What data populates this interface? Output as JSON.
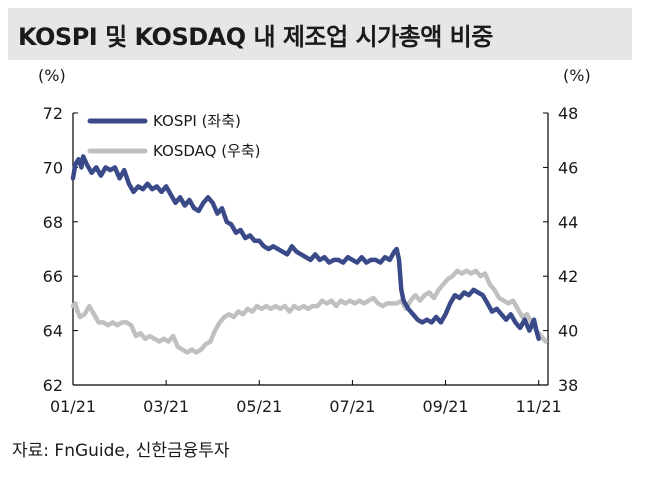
{
  "title": "KOSPI 및 KOSDAQ 내 제조업 시가총액 비중",
  "source": "자료: FnGuide, 신한금융투자",
  "colors": {
    "kospi": "#3a4a88",
    "kosdaq": "#c0c0c0",
    "title_bg": "#e6e6e6"
  },
  "chart_data": {
    "type": "line",
    "title": "KOSPI 및 KOSDAQ 내 제조업 시가총액 비중",
    "x_ticks": [
      "01/21",
      "03/21",
      "05/21",
      "07/21",
      "09/21",
      "11/21"
    ],
    "left_axis": {
      "unit": "(%)",
      "ylim": [
        62,
        72
      ],
      "ticks": [
        62,
        64,
        66,
        68,
        70,
        72
      ]
    },
    "right_axis": {
      "unit": "(%)",
      "ylim": [
        38,
        48
      ],
      "ticks": [
        38,
        40,
        42,
        44,
        46,
        48
      ]
    },
    "legend_position": "top-left",
    "grid": false,
    "x_domain": [
      0,
      10.2
    ],
    "x_note": "months since 01/21",
    "series": [
      {
        "name": "KOSPI (좌축)",
        "axis": "left",
        "color": "#3a4a88",
        "points": [
          [
            0.0,
            69.6
          ],
          [
            0.05,
            70.1
          ],
          [
            0.12,
            70.3
          ],
          [
            0.18,
            70.0
          ],
          [
            0.22,
            70.4
          ],
          [
            0.3,
            70.1
          ],
          [
            0.4,
            69.8
          ],
          [
            0.5,
            70.0
          ],
          [
            0.6,
            69.7
          ],
          [
            0.7,
            70.0
          ],
          [
            0.8,
            69.9
          ],
          [
            0.9,
            70.0
          ],
          [
            1.0,
            69.6
          ],
          [
            1.1,
            69.9
          ],
          [
            1.2,
            69.4
          ],
          [
            1.3,
            69.1
          ],
          [
            1.4,
            69.3
          ],
          [
            1.5,
            69.2
          ],
          [
            1.6,
            69.4
          ],
          [
            1.7,
            69.2
          ],
          [
            1.8,
            69.3
          ],
          [
            1.9,
            69.1
          ],
          [
            2.0,
            69.3
          ],
          [
            2.1,
            69.0
          ],
          [
            2.2,
            68.7
          ],
          [
            2.3,
            68.9
          ],
          [
            2.4,
            68.6
          ],
          [
            2.5,
            68.8
          ],
          [
            2.6,
            68.5
          ],
          [
            2.7,
            68.4
          ],
          [
            2.8,
            68.7
          ],
          [
            2.9,
            68.9
          ],
          [
            3.0,
            68.7
          ],
          [
            3.1,
            68.3
          ],
          [
            3.2,
            68.5
          ],
          [
            3.3,
            68.0
          ],
          [
            3.4,
            67.9
          ],
          [
            3.5,
            67.6
          ],
          [
            3.6,
            67.7
          ],
          [
            3.7,
            67.4
          ],
          [
            3.8,
            67.5
          ],
          [
            3.9,
            67.3
          ],
          [
            4.0,
            67.3
          ],
          [
            4.1,
            67.1
          ],
          [
            4.2,
            67.0
          ],
          [
            4.3,
            67.1
          ],
          [
            4.4,
            67.0
          ],
          [
            4.5,
            66.9
          ],
          [
            4.6,
            66.8
          ],
          [
            4.7,
            67.1
          ],
          [
            4.8,
            66.9
          ],
          [
            4.9,
            66.8
          ],
          [
            5.0,
            66.7
          ],
          [
            5.1,
            66.6
          ],
          [
            5.2,
            66.8
          ],
          [
            5.3,
            66.6
          ],
          [
            5.4,
            66.7
          ],
          [
            5.5,
            66.5
          ],
          [
            5.6,
            66.6
          ],
          [
            5.7,
            66.6
          ],
          [
            5.8,
            66.5
          ],
          [
            5.9,
            66.7
          ],
          [
            6.0,
            66.6
          ],
          [
            6.1,
            66.5
          ],
          [
            6.2,
            66.7
          ],
          [
            6.3,
            66.5
          ],
          [
            6.4,
            66.6
          ],
          [
            6.5,
            66.6
          ],
          [
            6.6,
            66.5
          ],
          [
            6.7,
            66.7
          ],
          [
            6.8,
            66.6
          ],
          [
            6.9,
            66.9
          ],
          [
            6.95,
            67.0
          ],
          [
            7.0,
            66.6
          ],
          [
            7.05,
            65.5
          ],
          [
            7.1,
            65.1
          ],
          [
            7.2,
            64.8
          ],
          [
            7.3,
            64.6
          ],
          [
            7.4,
            64.4
          ],
          [
            7.5,
            64.3
          ],
          [
            7.6,
            64.4
          ],
          [
            7.7,
            64.3
          ],
          [
            7.8,
            64.5
          ],
          [
            7.9,
            64.3
          ],
          [
            8.0,
            64.6
          ],
          [
            8.1,
            65.0
          ],
          [
            8.2,
            65.3
          ],
          [
            8.3,
            65.2
          ],
          [
            8.4,
            65.4
          ],
          [
            8.5,
            65.3
          ],
          [
            8.6,
            65.5
          ],
          [
            8.7,
            65.4
          ],
          [
            8.8,
            65.3
          ],
          [
            8.9,
            65.0
          ],
          [
            9.0,
            64.7
          ],
          [
            9.1,
            64.8
          ],
          [
            9.2,
            64.6
          ],
          [
            9.3,
            64.4
          ],
          [
            9.4,
            64.6
          ],
          [
            9.5,
            64.3
          ],
          [
            9.6,
            64.1
          ],
          [
            9.7,
            64.4
          ],
          [
            9.8,
            64.0
          ],
          [
            9.85,
            64.2
          ],
          [
            9.9,
            64.4
          ],
          [
            9.95,
            64.0
          ],
          [
            10.0,
            63.7
          ]
        ]
      },
      {
        "name": "KOSDAQ (우축)",
        "axis": "right",
        "color": "#c0c0c0",
        "points": [
          [
            0.0,
            40.9
          ],
          [
            0.05,
            41.0
          ],
          [
            0.1,
            40.7
          ],
          [
            0.15,
            40.5
          ],
          [
            0.25,
            40.6
          ],
          [
            0.35,
            40.9
          ],
          [
            0.45,
            40.6
          ],
          [
            0.55,
            40.3
          ],
          [
            0.65,
            40.3
          ],
          [
            0.75,
            40.2
          ],
          [
            0.85,
            40.3
          ],
          [
            0.95,
            40.2
          ],
          [
            1.05,
            40.3
          ],
          [
            1.15,
            40.3
          ],
          [
            1.25,
            40.2
          ],
          [
            1.35,
            39.8
          ],
          [
            1.45,
            39.9
          ],
          [
            1.55,
            39.7
          ],
          [
            1.65,
            39.8
          ],
          [
            1.75,
            39.7
          ],
          [
            1.85,
            39.6
          ],
          [
            1.95,
            39.7
          ],
          [
            2.05,
            39.6
          ],
          [
            2.15,
            39.8
          ],
          [
            2.25,
            39.4
          ],
          [
            2.35,
            39.3
          ],
          [
            2.45,
            39.2
          ],
          [
            2.55,
            39.3
          ],
          [
            2.65,
            39.2
          ],
          [
            2.75,
            39.3
          ],
          [
            2.85,
            39.5
          ],
          [
            2.95,
            39.6
          ],
          [
            3.05,
            40.0
          ],
          [
            3.15,
            40.3
          ],
          [
            3.25,
            40.5
          ],
          [
            3.35,
            40.6
          ],
          [
            3.45,
            40.5
          ],
          [
            3.55,
            40.7
          ],
          [
            3.65,
            40.6
          ],
          [
            3.75,
            40.8
          ],
          [
            3.85,
            40.7
          ],
          [
            3.95,
            40.9
          ],
          [
            4.05,
            40.8
          ],
          [
            4.15,
            40.9
          ],
          [
            4.25,
            40.8
          ],
          [
            4.35,
            40.9
          ],
          [
            4.45,
            40.8
          ],
          [
            4.55,
            40.9
          ],
          [
            4.65,
            40.7
          ],
          [
            4.75,
            40.9
          ],
          [
            4.85,
            40.8
          ],
          [
            4.95,
            40.9
          ],
          [
            5.05,
            40.8
          ],
          [
            5.15,
            40.9
          ],
          [
            5.25,
            40.9
          ],
          [
            5.35,
            41.1
          ],
          [
            5.45,
            41.0
          ],
          [
            5.55,
            41.1
          ],
          [
            5.65,
            40.9
          ],
          [
            5.75,
            41.1
          ],
          [
            5.85,
            41.0
          ],
          [
            5.95,
            41.1
          ],
          [
            6.05,
            41.0
          ],
          [
            6.15,
            41.1
          ],
          [
            6.25,
            41.0
          ],
          [
            6.35,
            41.1
          ],
          [
            6.45,
            41.2
          ],
          [
            6.55,
            41.0
          ],
          [
            6.65,
            40.9
          ],
          [
            6.75,
            41.0
          ],
          [
            6.85,
            41.0
          ],
          [
            6.95,
            41.0
          ],
          [
            7.05,
            41.1
          ],
          [
            7.15,
            40.8
          ],
          [
            7.25,
            41.1
          ],
          [
            7.35,
            41.3
          ],
          [
            7.45,
            41.1
          ],
          [
            7.55,
            41.3
          ],
          [
            7.65,
            41.4
          ],
          [
            7.75,
            41.2
          ],
          [
            7.85,
            41.5
          ],
          [
            7.95,
            41.7
          ],
          [
            8.05,
            41.9
          ],
          [
            8.15,
            42.0
          ],
          [
            8.25,
            42.2
          ],
          [
            8.35,
            42.1
          ],
          [
            8.45,
            42.2
          ],
          [
            8.55,
            42.1
          ],
          [
            8.65,
            42.2
          ],
          [
            8.75,
            42.0
          ],
          [
            8.85,
            42.1
          ],
          [
            8.95,
            41.7
          ],
          [
            9.05,
            41.5
          ],
          [
            9.15,
            41.2
          ],
          [
            9.25,
            41.1
          ],
          [
            9.35,
            41.0
          ],
          [
            9.45,
            41.1
          ],
          [
            9.55,
            40.8
          ],
          [
            9.65,
            40.5
          ],
          [
            9.75,
            40.6
          ],
          [
            9.85,
            40.3
          ],
          [
            9.95,
            40.0
          ],
          [
            10.05,
            39.8
          ],
          [
            10.15,
            39.6
          ]
        ]
      }
    ]
  }
}
